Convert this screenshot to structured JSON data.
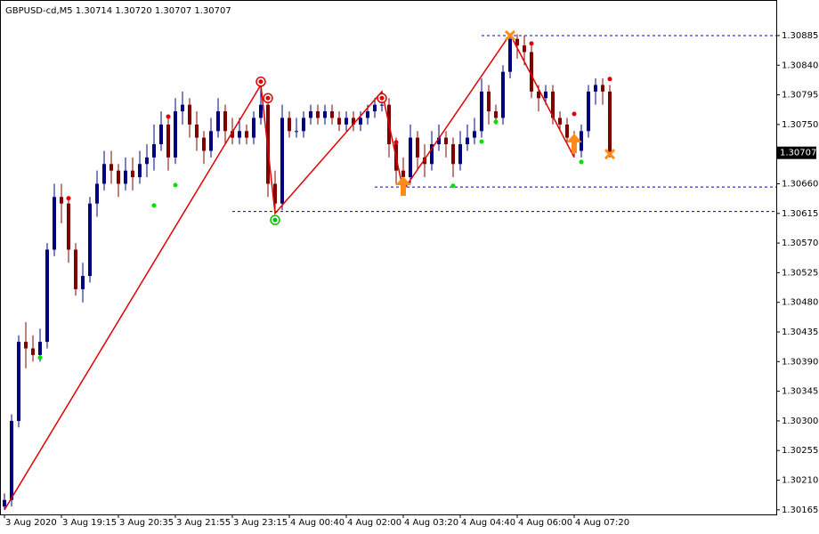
{
  "chart_data": {
    "type": "candlestick",
    "title": "GBPUSD-cd,M5  1.30714 1.30720 1.30707 1.30707",
    "categories": [
      "3 Aug 2020",
      null,
      null,
      null,
      null,
      null,
      null,
      null,
      "3 Aug 19:15",
      null,
      null,
      null,
      null,
      null,
      null,
      null,
      "3 Aug 20:35",
      null,
      null,
      null,
      null,
      null,
      null,
      null,
      "3 Aug 21:55",
      null,
      null,
      null,
      null,
      null,
      null,
      null,
      "3 Aug 23:15",
      null,
      null,
      null,
      null,
      null,
      null,
      null,
      "4 Aug 00:40",
      null,
      null,
      null,
      null,
      null,
      null,
      null,
      "4 Aug 02:00",
      null,
      null,
      null,
      null,
      null,
      null,
      null,
      "4 Aug 03:20",
      null,
      null,
      null,
      null,
      null,
      null,
      null,
      "4 Aug 04:40",
      null,
      null,
      null,
      null,
      null,
      null,
      null,
      "4 Aug 06:00",
      null,
      null,
      null,
      null,
      null,
      null,
      null,
      "4 Aug 07:20",
      null,
      null,
      null,
      null,
      null
    ],
    "open": [
      1.3017,
      1.3018,
      1.303,
      1.3042,
      1.3041,
      1.304,
      1.3042,
      1.3056,
      1.3064,
      1.3063,
      1.3056,
      1.305,
      1.3052,
      1.3063,
      1.3066,
      1.3069,
      1.3068,
      1.3066,
      1.3068,
      1.3067,
      1.3069,
      1.307,
      1.3072,
      1.3075,
      1.307,
      1.3077,
      1.3078,
      1.3075,
      1.3073,
      1.3071,
      1.3074,
      1.3077,
      1.3074,
      1.3073,
      1.3074,
      1.3073,
      1.3076,
      1.3078,
      1.3066,
      1.3063,
      1.3076,
      1.3074,
      1.3074,
      1.3076,
      1.3077,
      1.3076,
      1.3077,
      1.3076,
      1.3075,
      1.3076,
      1.3075,
      1.3076,
      1.3077,
      1.3078,
      1.3078,
      1.3072,
      1.3068,
      1.3067,
      1.3073,
      1.307,
      1.3069,
      1.3072,
      1.3073,
      1.3072,
      1.3069,
      1.3072,
      1.3073,
      1.3074,
      1.308,
      1.3077,
      1.3076,
      1.3083,
      1.3088,
      1.3087,
      1.3086,
      1.308,
      1.3079,
      1.308,
      1.3076,
      1.3075,
      1.3073,
      1.3071,
      1.3074,
      1.308,
      1.3081,
      1.308
    ],
    "high": [
      1.3019,
      1.3031,
      1.3043,
      1.3045,
      1.3043,
      1.3044,
      1.3057,
      1.3066,
      1.3066,
      1.3064,
      1.3057,
      1.3054,
      1.3064,
      1.3068,
      1.3071,
      1.3071,
      1.3069,
      1.307,
      1.307,
      1.3071,
      1.3072,
      1.3075,
      1.3077,
      1.3076,
      1.3079,
      1.308,
      1.3079,
      1.3077,
      1.3074,
      1.3076,
      1.3079,
      1.3078,
      1.3076,
      1.3076,
      1.3075,
      1.3077,
      1.3081,
      1.3079,
      1.3068,
      1.3078,
      1.3077,
      1.3076,
      1.3077,
      1.3078,
      1.3078,
      1.3078,
      1.3078,
      1.3077,
      1.3077,
      1.3077,
      1.3077,
      1.3078,
      1.3079,
      1.308,
      1.3079,
      1.3073,
      1.307,
      1.3075,
      1.3074,
      1.3072,
      1.3074,
      1.3075,
      1.3074,
      1.3073,
      1.3074,
      1.3075,
      1.3076,
      1.3082,
      1.3081,
      1.3078,
      1.3084,
      1.30887,
      1.30887,
      1.30885,
      1.3087,
      1.3081,
      1.3081,
      1.3081,
      1.3077,
      1.3076,
      1.3074,
      1.3075,
      1.3081,
      1.3082,
      1.3082,
      1.3081
    ],
    "low": [
      1.30165,
      1.3017,
      1.3029,
      1.3038,
      1.3039,
      1.3039,
      1.3041,
      1.3055,
      1.306,
      1.3054,
      1.3049,
      1.3048,
      1.3051,
      1.3061,
      1.3065,
      1.3066,
      1.3064,
      1.3065,
      1.3065,
      1.3066,
      1.3067,
      1.3068,
      1.3071,
      1.3068,
      1.3069,
      1.3075,
      1.3073,
      1.3071,
      1.3069,
      1.307,
      1.3073,
      1.3072,
      1.3072,
      1.3072,
      1.3072,
      1.3072,
      1.3075,
      1.3064,
      1.30615,
      1.3062,
      1.3073,
      1.3073,
      1.3073,
      1.3075,
      1.3075,
      1.3075,
      1.3075,
      1.3074,
      1.3074,
      1.3074,
      1.3074,
      1.3075,
      1.3076,
      1.3077,
      1.307,
      1.3066,
      1.3065,
      1.3066,
      1.3068,
      1.3067,
      1.3068,
      1.3071,
      1.307,
      1.3067,
      1.3068,
      1.3071,
      1.3072,
      1.3073,
      1.3075,
      1.3075,
      1.3075,
      1.3082,
      1.3085,
      1.3084,
      1.3079,
      1.3077,
      1.3078,
      1.3075,
      1.3074,
      1.3072,
      1.307,
      1.307,
      1.3073,
      1.3078,
      1.3078,
      1.307
    ],
    "close": [
      1.3018,
      1.303,
      1.3042,
      1.3041,
      1.304,
      1.3042,
      1.3056,
      1.3064,
      1.3063,
      1.3056,
      1.305,
      1.3052,
      1.3063,
      1.3066,
      1.3069,
      1.3068,
      1.3066,
      1.3068,
      1.3067,
      1.3069,
      1.307,
      1.3072,
      1.3075,
      1.307,
      1.3077,
      1.3078,
      1.3075,
      1.3073,
      1.3071,
      1.3074,
      1.3077,
      1.3074,
      1.3073,
      1.3074,
      1.3073,
      1.3076,
      1.3078,
      1.3066,
      1.3063,
      1.3076,
      1.3074,
      1.3074,
      1.3076,
      1.3077,
      1.3076,
      1.3077,
      1.3076,
      1.3075,
      1.3076,
      1.3075,
      1.3076,
      1.3077,
      1.3078,
      1.3078,
      1.3072,
      1.3068,
      1.3067,
      1.3073,
      1.307,
      1.3069,
      1.3072,
      1.3073,
      1.3072,
      1.3069,
      1.3072,
      1.3073,
      1.3074,
      1.308,
      1.3077,
      1.3076,
      1.3083,
      1.3088,
      1.3087,
      1.3086,
      1.308,
      1.3079,
      1.308,
      1.3076,
      1.3075,
      1.3073,
      1.3071,
      1.3074,
      1.308,
      1.3081,
      1.308,
      1.30707
    ],
    "up_color": "#000080",
    "down_color": "#800000",
    "ylim": [
      1.30158,
      1.30939
    ],
    "yticks": [
      1.30165,
      {
        "value": 1.3021,
        "label": "1.30210"
      },
      1.30255,
      {
        "value": 1.303,
        "label": "1.30300"
      },
      1.30345,
      {
        "value": 1.3039,
        "label": "1.30390"
      },
      1.30435,
      {
        "value": 1.3048,
        "label": "1.30480"
      },
      1.30525,
      {
        "value": 1.3057,
        "label": "1.30570"
      },
      1.30615,
      {
        "value": 1.3066,
        "label": "1.30660"
      },
      {
        "value": 1.3075,
        "label": "1.30750"
      },
      1.30795,
      {
        "value": 1.3084,
        "label": "1.30840"
      },
      1.30885
    ],
    "last_price": 1.30707,
    "zigzag": {
      "color": "#e00000",
      "x": [
        0,
        36,
        38,
        53,
        56,
        71,
        80
      ],
      "values": [
        1.30165,
        1.3081,
        1.30615,
        1.308,
        1.3065,
        1.30887,
        1.307
      ]
    },
    "levels": [
      {
        "from": 67,
        "value": 1.30885
      },
      {
        "from": 52,
        "value": 1.30655
      },
      {
        "from": 32,
        "value": 1.30618
      }
    ],
    "level_color": "#0000cc",
    "signals": [
      {
        "x": 5,
        "value": 1.30396,
        "color": "#00e000"
      },
      {
        "x": 21,
        "value": 1.30627,
        "color": "#00e000"
      },
      {
        "x": 24,
        "value": 1.30658,
        "color": "#00e000"
      },
      {
        "x": 63,
        "value": 1.30657,
        "color": "#00e000"
      },
      {
        "x": 67,
        "value": 1.30724,
        "color": "#00e000"
      },
      {
        "x": 69,
        "value": 1.30754,
        "color": "#00e000"
      },
      {
        "x": 81,
        "value": 1.30693,
        "color": "#00e000"
      },
      {
        "x": 9,
        "value": 1.30638,
        "color": "#e00000"
      },
      {
        "x": 23,
        "value": 1.30762,
        "color": "#e00000"
      },
      {
        "x": 55,
        "value": 1.30723,
        "color": "#e00000"
      },
      {
        "x": 74,
        "value": 1.30873,
        "color": "#e00000"
      },
      {
        "x": 80,
        "value": 1.30766,
        "color": "#e00000"
      },
      {
        "x": 85,
        "value": 1.30819,
        "color": "#e00000"
      }
    ],
    "circles": [
      {
        "x": 36,
        "value": 1.30815,
        "color": "#e00000"
      },
      {
        "x": 37,
        "value": 1.3079,
        "color": "#e00000"
      },
      {
        "x": 38,
        "value": 1.30605,
        "color": "#00c000"
      },
      {
        "x": 53,
        "value": 1.3079,
        "color": "#e00000"
      }
    ],
    "arrows": [
      {
        "x": 56,
        "value": 1.30655
      },
      {
        "x": 80,
        "value": 1.3072
      }
    ],
    "crosses": [
      {
        "x": 71,
        "value": 1.30885
      },
      {
        "x": 85,
        "value": 1.30705
      }
    ],
    "marker_color": "#ff8c1a"
  }
}
